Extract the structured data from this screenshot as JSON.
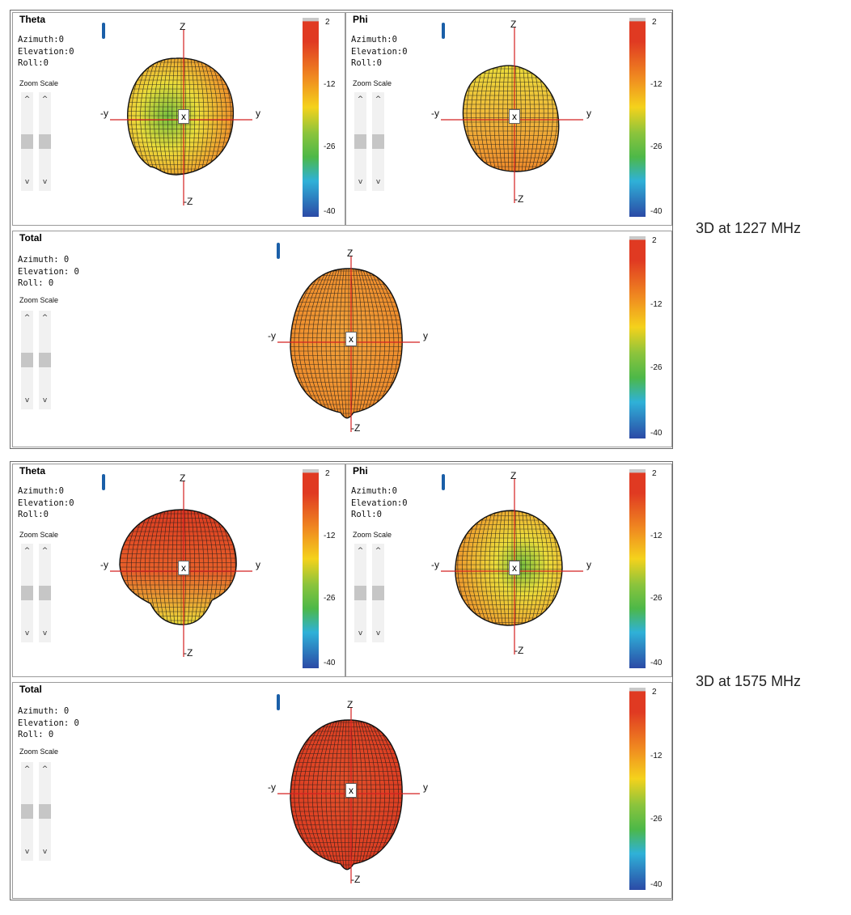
{
  "captions": {
    "first": "3D at 1227 MHz",
    "second": "3D at 1575 MHz"
  },
  "groups": [
    {
      "theta": {
        "title": "Theta",
        "azimuth": "Azimuth:0",
        "elevation": "Elevation:0",
        "roll": "Roll:0",
        "zoom": "Zoom Scale"
      },
      "phi": {
        "title": "Phi",
        "azimuth": "Azimuth:0",
        "elevation": "Elevation:0",
        "roll": "Roll:0",
        "zoom": "Zoom Scale"
      },
      "total": {
        "title": "Total",
        "azimuth": "Azimuth: 0",
        "elevation": "Elevation: 0",
        "roll": "Roll: 0",
        "zoom": "Zoom Scale"
      }
    },
    {
      "theta": {
        "title": "Theta",
        "azimuth": "Azimuth:0",
        "elevation": "Elevation:0",
        "roll": "Roll:0",
        "zoom": "Zoom Scale"
      },
      "phi": {
        "title": "Phi",
        "azimuth": "Azimuth:0",
        "elevation": "Elevation:0",
        "roll": "Roll:0",
        "zoom": "Zoom Scale"
      },
      "total": {
        "title": "Total",
        "azimuth": "Azimuth: 0",
        "elevation": "Elevation: 0",
        "roll": "Roll: 0",
        "zoom": "Zoom Scale"
      }
    }
  ],
  "axis_labels": {
    "z": "Z",
    "neg_z": "-Z",
    "y": "y",
    "neg_y": "-y",
    "x": "x"
  },
  "slider_arrows": {
    "up": "^",
    "down": "v"
  },
  "colorbar_ticks": [
    "2",
    "-12",
    "-26",
    "-40"
  ],
  "colorbar_colors": [
    "#c9c9c9",
    "#e03a22",
    "#f08a20",
    "#f4d21c",
    "#8bc43c",
    "#4db848",
    "#2fb1d8",
    "#2b4aa6"
  ],
  "pattern_colors": {
    "red": "#dd3b21",
    "orange": "#ef8a2a",
    "yellow": "#ecdc3a",
    "green": "#77bf3e",
    "mesh": "#1a1a1a"
  },
  "marker_color": "#1a5fa8"
}
